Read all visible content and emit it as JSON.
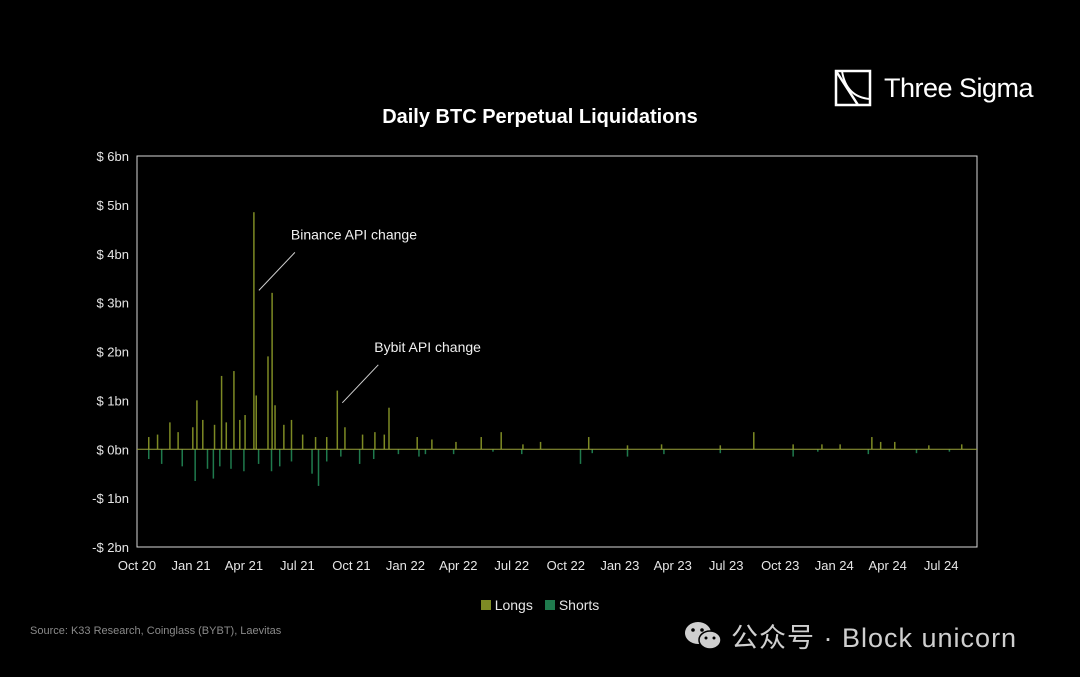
{
  "brand": {
    "name": "Three Sigma"
  },
  "footer": {
    "source": "Source: K33 Research, Coinglass (BYBT), Laevitas",
    "watermark": "公众号 · Block unicorn",
    "watermark_icon": "wechat-icon"
  },
  "colors": {
    "longs": "#7d8a24",
    "shorts": "#1f7a4d",
    "background": "#000000",
    "axis": "#d9d9d9"
  },
  "chart_data": {
    "type": "bar",
    "title": "Daily BTC Perpetual Liquidations",
    "xlabel": "",
    "ylabel": "",
    "unit": "bn USD",
    "ylim": [
      -2,
      6
    ],
    "y_ticks": [
      {
        "value": 6,
        "label": "$ 6bn"
      },
      {
        "value": 5,
        "label": "$ 5bn"
      },
      {
        "value": 4,
        "label": "$ 4bn"
      },
      {
        "value": 3,
        "label": "$ 3bn"
      },
      {
        "value": 2,
        "label": "$ 2bn"
      },
      {
        "value": 1,
        "label": "$ 1bn"
      },
      {
        "value": 0,
        "label": "$ 0bn"
      },
      {
        "value": -1,
        "label": "-$ 1bn"
      },
      {
        "value": -2,
        "label": "-$ 2bn"
      }
    ],
    "x_range": [
      "2020-10-01",
      "2024-08-31"
    ],
    "x_ticks": [
      {
        "date": "2020-10-01",
        "label": "Oct 20"
      },
      {
        "date": "2021-01-01",
        "label": "Jan 21"
      },
      {
        "date": "2021-04-01",
        "label": "Apr 21"
      },
      {
        "date": "2021-07-01",
        "label": "Jul 21"
      },
      {
        "date": "2021-10-01",
        "label": "Oct 21"
      },
      {
        "date": "2022-01-01",
        "label": "Jan 22"
      },
      {
        "date": "2022-04-01",
        "label": "Apr 22"
      },
      {
        "date": "2022-07-01",
        "label": "Jul 22"
      },
      {
        "date": "2022-10-01",
        "label": "Oct 22"
      },
      {
        "date": "2023-01-01",
        "label": "Jan 23"
      },
      {
        "date": "2023-04-01",
        "label": "Apr 23"
      },
      {
        "date": "2023-07-01",
        "label": "Jul 23"
      },
      {
        "date": "2023-10-01",
        "label": "Oct 23"
      },
      {
        "date": "2024-01-01",
        "label": "Jan 24"
      },
      {
        "date": "2024-04-01",
        "label": "Apr 24"
      },
      {
        "date": "2024-07-01",
        "label": "Jul 24"
      }
    ],
    "grid": false,
    "legend_position": "bottom-center",
    "series": [
      {
        "name": "Longs",
        "color": "#7d8a24",
        "points": [
          [
            "2020-10-21",
            0.25
          ],
          [
            "2020-11-05",
            0.3
          ],
          [
            "2020-11-26",
            0.55
          ],
          [
            "2020-12-10",
            0.35
          ],
          [
            "2021-01-04",
            0.45
          ],
          [
            "2021-01-11",
            1.0
          ],
          [
            "2021-01-21",
            0.6
          ],
          [
            "2021-02-10",
            0.5
          ],
          [
            "2021-02-22",
            1.5
          ],
          [
            "2021-03-02",
            0.55
          ],
          [
            "2021-03-15",
            1.6
          ],
          [
            "2021-03-25",
            0.6
          ],
          [
            "2021-04-03",
            0.7
          ],
          [
            "2021-04-18",
            4.85
          ],
          [
            "2021-04-22",
            1.1
          ],
          [
            "2021-05-12",
            1.9
          ],
          [
            "2021-05-19",
            3.2
          ],
          [
            "2021-05-24",
            0.9
          ],
          [
            "2021-06-08",
            0.5
          ],
          [
            "2021-06-21",
            0.6
          ],
          [
            "2021-07-10",
            0.3
          ],
          [
            "2021-08-01",
            0.25
          ],
          [
            "2021-08-20",
            0.25
          ],
          [
            "2021-09-07",
            1.2
          ],
          [
            "2021-09-20",
            0.45
          ],
          [
            "2021-10-20",
            0.3
          ],
          [
            "2021-11-10",
            0.35
          ],
          [
            "2021-11-26",
            0.3
          ],
          [
            "2021-12-04",
            0.85
          ],
          [
            "2022-01-21",
            0.25
          ],
          [
            "2022-02-15",
            0.2
          ],
          [
            "2022-03-28",
            0.15
          ],
          [
            "2022-05-10",
            0.25
          ],
          [
            "2022-06-13",
            0.35
          ],
          [
            "2022-07-20",
            0.1
          ],
          [
            "2022-08-19",
            0.15
          ],
          [
            "2022-11-09",
            0.25
          ],
          [
            "2023-01-14",
            0.08
          ],
          [
            "2023-03-13",
            0.1
          ],
          [
            "2023-06-21",
            0.08
          ],
          [
            "2023-08-17",
            0.35
          ],
          [
            "2023-10-23",
            0.1
          ],
          [
            "2023-12-11",
            0.1
          ],
          [
            "2024-01-11",
            0.1
          ],
          [
            "2024-03-05",
            0.25
          ],
          [
            "2024-03-20",
            0.15
          ],
          [
            "2024-04-13",
            0.15
          ],
          [
            "2024-06-10",
            0.08
          ],
          [
            "2024-08-05",
            0.1
          ]
        ]
      },
      {
        "name": "Shorts",
        "color": "#1f7a4d",
        "points": [
          [
            "2020-10-21",
            -0.2
          ],
          [
            "2020-11-12",
            -0.3
          ],
          [
            "2020-12-17",
            -0.35
          ],
          [
            "2021-01-08",
            -0.65
          ],
          [
            "2021-01-29",
            -0.4
          ],
          [
            "2021-02-08",
            -0.6
          ],
          [
            "2021-02-19",
            -0.35
          ],
          [
            "2021-03-10",
            -0.4
          ],
          [
            "2021-04-01",
            -0.45
          ],
          [
            "2021-04-26",
            -0.3
          ],
          [
            "2021-05-18",
            -0.45
          ],
          [
            "2021-06-01",
            -0.35
          ],
          [
            "2021-06-21",
            -0.25
          ],
          [
            "2021-07-26",
            -0.5
          ],
          [
            "2021-08-06",
            -0.75
          ],
          [
            "2021-08-20",
            -0.25
          ],
          [
            "2021-09-13",
            -0.15
          ],
          [
            "2021-10-15",
            -0.3
          ],
          [
            "2021-11-08",
            -0.2
          ],
          [
            "2021-12-20",
            -0.1
          ],
          [
            "2022-01-24",
            -0.15
          ],
          [
            "2022-02-04",
            -0.1
          ],
          [
            "2022-03-24",
            -0.1
          ],
          [
            "2022-05-30",
            -0.05
          ],
          [
            "2022-07-18",
            -0.1
          ],
          [
            "2022-10-26",
            -0.3
          ],
          [
            "2022-11-15",
            -0.08
          ],
          [
            "2023-01-14",
            -0.15
          ],
          [
            "2023-03-17",
            -0.1
          ],
          [
            "2023-06-21",
            -0.08
          ],
          [
            "2023-10-23",
            -0.15
          ],
          [
            "2023-12-04",
            -0.05
          ],
          [
            "2024-02-28",
            -0.1
          ],
          [
            "2024-05-20",
            -0.08
          ],
          [
            "2024-07-15",
            -0.05
          ]
        ]
      }
    ],
    "annotations": [
      {
        "text": "Binance API change",
        "date": "2021-04-18",
        "value": 3.25
      },
      {
        "text": "Bybit API change",
        "date": "2021-09-07",
        "value": 0.95
      }
    ]
  }
}
